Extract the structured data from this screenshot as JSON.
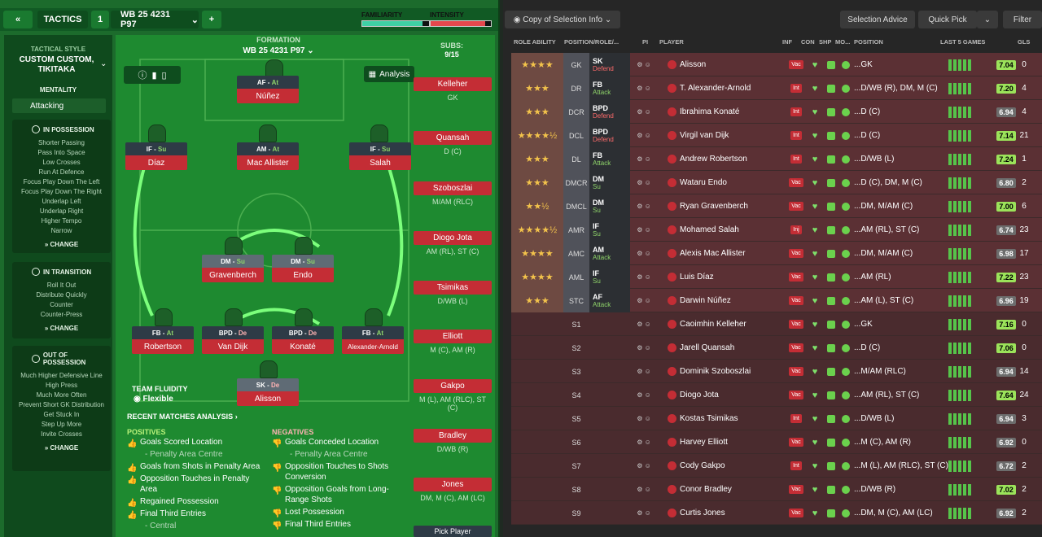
{
  "topbar": {
    "back_icon": "double-chevron-left-icon",
    "tactics_label": "TACTICS",
    "slot_number": "1",
    "tactic_name": "WB 25 4231 P97",
    "add_label": "+",
    "familiarity_label": "FAMILIARITY",
    "intensity_label": "INTENSITY",
    "familiarity_fraction": 0.9,
    "intensity_fraction": 0.9
  },
  "sidebar": {
    "style_label": "TACTICAL STYLE",
    "style_value": "CUSTOM CUSTOM, TIKITAKA",
    "mentality_label": "MENTALITY",
    "mentality_value": "Attacking",
    "in_possession": {
      "title": "IN POSSESSION",
      "items": [
        "Shorter Passing",
        "Pass Into Space",
        "Low Crosses",
        "Run At Defence",
        "Focus Play Down The Left",
        "Focus Play Down The Right",
        "Underlap Left",
        "Underlap Right",
        "Higher Tempo",
        "Narrow"
      ],
      "change": "CHANGE"
    },
    "in_transition": {
      "title": "IN TRANSITION",
      "items": [
        "Roll It Out",
        "Distribute Quickly",
        "Counter",
        "Counter-Press"
      ],
      "change": "CHANGE"
    },
    "out_of_possession": {
      "title": "OUT OF POSSESSION",
      "items": [
        "Much Higher Defensive Line",
        "High Press",
        "Much More Often",
        "Prevent Short GK Distribution",
        "Get Stuck In",
        "Step Up More",
        "Invite Crosses"
      ],
      "change": "CHANGE"
    }
  },
  "pitch": {
    "formation_label": "FORMATION",
    "formation_value": "WB 25 4231 P97",
    "analysis_button": "Analysis",
    "subs_label": "SUBS:",
    "subs_count": "9/15",
    "team_fluidity_label": "TEAM FLUIDITY",
    "team_fluidity_value": "Flexible",
    "positions": [
      {
        "role": "AF",
        "duty": "At",
        "name": "Núñez"
      },
      {
        "role": "IF",
        "duty": "Su",
        "name": "Díaz"
      },
      {
        "role": "AM",
        "duty": "At",
        "name": "Mac Allister"
      },
      {
        "role": "IF",
        "duty": "Su",
        "name": "Salah"
      },
      {
        "role": "DM",
        "duty": "Su",
        "name": "Gravenberch"
      },
      {
        "role": "DM",
        "duty": "Su",
        "name": "Endo"
      },
      {
        "role": "FB",
        "duty": "At",
        "name": "Robertson"
      },
      {
        "role": "BPD",
        "duty": "De",
        "name": "Van Dijk"
      },
      {
        "role": "BPD",
        "duty": "De",
        "name": "Konaté"
      },
      {
        "role": "FB",
        "duty": "At",
        "name": "Alexander-Arnold"
      },
      {
        "role": "SK",
        "duty": "De",
        "name": "Alisson"
      }
    ],
    "subs": [
      {
        "name": "Kelleher",
        "pos": "GK"
      },
      {
        "name": "Quansah",
        "pos": "D (C)"
      },
      {
        "name": "Szoboszlai",
        "pos": "M/AM (RLC)"
      },
      {
        "name": "Diogo Jota",
        "pos": "AM (RL), ST (C)"
      },
      {
        "name": "Tsimikas",
        "pos": "D/WB (L)"
      },
      {
        "name": "Elliott",
        "pos": "M (C), AM (R)"
      },
      {
        "name": "Gakpo",
        "pos": "M (L), AM (RLC), ST (C)"
      },
      {
        "name": "Bradley",
        "pos": "D/WB (R)"
      },
      {
        "name": "Jones",
        "pos": "DM, M (C), AM (LC)"
      }
    ],
    "pick_player": "Pick Player"
  },
  "analysis": {
    "title": "RECENT MATCHES ANALYSIS",
    "positives_label": "POSITIVES",
    "negatives_label": "NEGATIVES",
    "positives": [
      "Goals Scored Location",
      "- Penalty Area Centre",
      "Goals from Shots in Penalty Area",
      "Opposition Touches in Penalty Area",
      "Regained Possession",
      "Final Third Entries",
      "- Central"
    ],
    "negatives": [
      "Goals Conceded Location",
      "- Penalty Area Centre",
      "Opposition Touches to Shots Conversion",
      "Opposition Goals from Long-Range Shots",
      "Lost Possession",
      "Final Third Entries"
    ]
  },
  "right_toolbar": {
    "copy_label": "Copy of Selection Info",
    "selection_advice": "Selection Advice",
    "quick_pick": "Quick Pick",
    "filter": "Filter"
  },
  "table_headers": {
    "role_ability": "ROLE ABILITY",
    "position_role": "POSITION/ROLE/...",
    "pi": "PI",
    "player": "PLAYER",
    "inf": "INF",
    "con": "CON",
    "shp": "SHP",
    "mo": "MO...",
    "position": "POSITION",
    "last5": "LAST 5 GAMES",
    "gls": "GLS"
  },
  "rows": [
    {
      "stars": "★★★★",
      "pos": "GK",
      "role": "SK",
      "duty": "Defend",
      "player": "Alisson",
      "inf": "Vac",
      "position": "...GK",
      "rating": "7.04",
      "gls": "0"
    },
    {
      "stars": "★★★",
      "pos": "DR",
      "role": "FB",
      "duty": "Attack",
      "player": "T. Alexander-Arnold",
      "inf": "Int",
      "position": "...D/WB (R), DM, M (C)",
      "rating": "7.20",
      "gls": "4"
    },
    {
      "stars": "★★★",
      "pos": "DCR",
      "role": "BPD",
      "duty": "Defend",
      "player": "Ibrahima Konaté",
      "inf": "Int",
      "position": "...D (C)",
      "rating": "6.94",
      "gls": "4"
    },
    {
      "stars": "★★★★½",
      "pos": "DCL",
      "role": "BPD",
      "duty": "Defend",
      "player": "Virgil van Dijk",
      "inf": "Int",
      "position": "...D (C)",
      "rating": "7.14",
      "gls": "21"
    },
    {
      "stars": "★★★",
      "pos": "DL",
      "role": "FB",
      "duty": "Attack",
      "player": "Andrew Robertson",
      "inf": "Int",
      "position": "...D/WB (L)",
      "rating": "7.24",
      "gls": "1"
    },
    {
      "stars": "★★★",
      "pos": "DMCR",
      "role": "DM",
      "duty": "Su",
      "player": "Wataru Endo",
      "inf": "Vac",
      "position": "...D (C), DM, M (C)",
      "rating": "6.80",
      "gls": "2"
    },
    {
      "stars": "★★½",
      "pos": "DMCL",
      "role": "DM",
      "duty": "Su",
      "player": "Ryan Gravenberch",
      "inf": "Vac",
      "position": "...DM, M/AM (C)",
      "rating": "7.00",
      "gls": "6"
    },
    {
      "stars": "★★★★½",
      "pos": "AMR",
      "role": "IF",
      "duty": "Su",
      "player": "Mohamed Salah",
      "inf": "Inj",
      "position": "...AM (RL), ST (C)",
      "rating": "6.74",
      "gls": "23"
    },
    {
      "stars": "★★★★",
      "pos": "AMC",
      "role": "AM",
      "duty": "Attack",
      "player": "Alexis Mac Allister",
      "inf": "Vac",
      "position": "...DM, M/AM (C)",
      "rating": "6.98",
      "gls": "17"
    },
    {
      "stars": "★★★★",
      "pos": "AML",
      "role": "IF",
      "duty": "Su",
      "player": "Luis Díaz",
      "inf": "Vac",
      "position": "...AM (RL)",
      "rating": "7.22",
      "gls": "23"
    },
    {
      "stars": "★★★",
      "pos": "STC",
      "role": "AF",
      "duty": "Attack",
      "player": "Darwin Núñez",
      "inf": "Vac",
      "position": "...AM (L), ST (C)",
      "rating": "6.96",
      "gls": "19"
    },
    {
      "stars": "",
      "pos": "S1",
      "role": "",
      "duty": "",
      "player": "Caoimhin Kelleher",
      "inf": "Vac",
      "position": "...GK",
      "rating": "7.16",
      "gls": "0"
    },
    {
      "stars": "",
      "pos": "S2",
      "role": "",
      "duty": "",
      "player": "Jarell Quansah",
      "inf": "Vac",
      "position": "...D (C)",
      "rating": "7.06",
      "gls": "0"
    },
    {
      "stars": "",
      "pos": "S3",
      "role": "",
      "duty": "",
      "player": "Dominik Szoboszlai",
      "inf": "Vac",
      "position": "...M/AM (RLC)",
      "rating": "6.94",
      "gls": "14"
    },
    {
      "stars": "",
      "pos": "S4",
      "role": "",
      "duty": "",
      "player": "Diogo Jota",
      "inf": "Vac",
      "position": "...AM (RL), ST (C)",
      "rating": "7.64",
      "gls": "24"
    },
    {
      "stars": "",
      "pos": "S5",
      "role": "",
      "duty": "",
      "player": "Kostas Tsimikas",
      "inf": "Int",
      "position": "...D/WB (L)",
      "rating": "6.94",
      "gls": "3"
    },
    {
      "stars": "",
      "pos": "S6",
      "role": "",
      "duty": "",
      "player": "Harvey Elliott",
      "inf": "Vac",
      "position": "...M (C), AM (R)",
      "rating": "6.92",
      "gls": "0"
    },
    {
      "stars": "",
      "pos": "S7",
      "role": "",
      "duty": "",
      "player": "Cody Gakpo",
      "inf": "Int",
      "position": "...M (L), AM (RLC), ST (C)",
      "rating": "6.72",
      "gls": "2"
    },
    {
      "stars": "",
      "pos": "S8",
      "role": "",
      "duty": "",
      "player": "Conor Bradley",
      "inf": "Vac",
      "position": "...D/WB (R)",
      "rating": "7.02",
      "gls": "2"
    },
    {
      "stars": "",
      "pos": "S9",
      "role": "",
      "duty": "",
      "player": "Curtis Jones",
      "inf": "Vac",
      "position": "...DM, M (C), AM (LC)",
      "rating": "6.92",
      "gls": "2"
    }
  ]
}
